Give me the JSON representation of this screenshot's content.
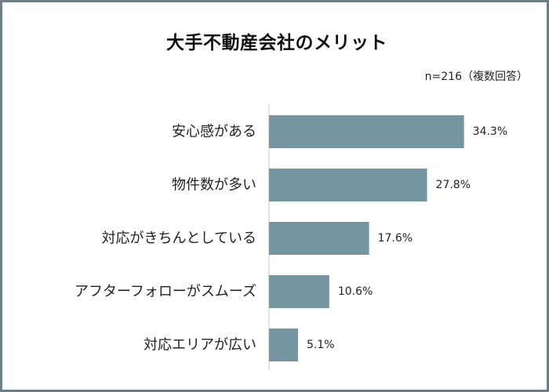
{
  "chart_data": {
    "type": "bar",
    "orientation": "horizontal",
    "title": "大手不動産会社のメリット",
    "note": "n=216（複数回答）",
    "categories": [
      "安心感がある",
      "物件数が多い",
      "対応がきちんとしている",
      "アフターフォローがスムーズ",
      "対応エリアが広い"
    ],
    "values": [
      34.3,
      27.8,
      17.6,
      10.6,
      5.1
    ],
    "value_labels": [
      "34.3%",
      "27.8%",
      "17.6%",
      "10.6%",
      "5.1%"
    ],
    "unit": "%",
    "xlim": [
      0,
      40
    ],
    "grid": false,
    "bar_color": "#7596a1"
  }
}
